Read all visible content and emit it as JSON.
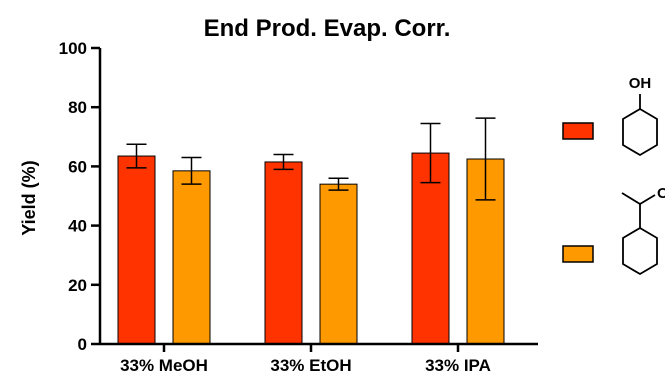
{
  "chart_data": {
    "type": "bar",
    "title": "End Prod. Evap. Corr.",
    "xlabel": "",
    "ylabel": "Yield (%)",
    "ylim": [
      0,
      100
    ],
    "yticks": [
      "0",
      "20",
      "40",
      "60",
      "80",
      "100"
    ],
    "categories": [
      "33% MeOH",
      "33% EtOH",
      "33% IPA"
    ],
    "series": [
      {
        "color": "#FF3300",
        "legend_structure": "cyclohexanol",
        "legend_label": "OH",
        "values": [
          63.5,
          61.5,
          64.5
        ],
        "error": [
          4.0,
          2.5,
          10.0
        ]
      },
      {
        "color": "#FF9900",
        "legend_structure": "1-cyclohexylethanol",
        "legend_label": "OH",
        "values": [
          58.5,
          54.0,
          62.5
        ],
        "error": [
          4.5,
          2.0,
          13.8
        ]
      }
    ],
    "grid": false,
    "legend_position": "right"
  }
}
